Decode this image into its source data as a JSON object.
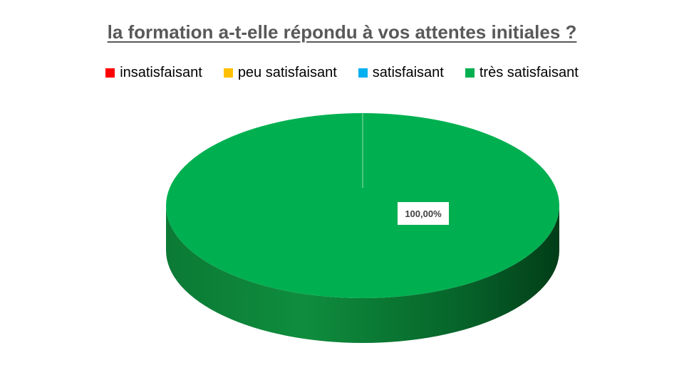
{
  "chart_data": {
    "type": "pie",
    "title": "la formation a-t-elle répondu à vos attentes initiales ?",
    "categories": [
      "insatisfaisant",
      "peu satisfaisant",
      "satisfaisant",
      "très satisfaisant"
    ],
    "values": [
      0,
      0,
      0,
      100
    ],
    "data_labels": [
      "",
      "",
      "",
      "100,00%"
    ],
    "colors": [
      "#ff0000",
      "#ffc000",
      "#00b0f0",
      "#00b050"
    ],
    "legend_placement": "top",
    "three_d": true
  }
}
